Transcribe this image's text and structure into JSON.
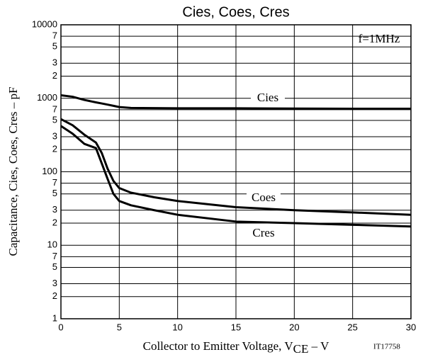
{
  "chart_data": {
    "type": "line",
    "title": "Cies, Coes, Cres",
    "y_label": "Capacitance, Cies, Coes, Cres – pF",
    "x_label_parts": [
      "Collector to Emitter Voltage, V",
      "CE",
      " – V"
    ],
    "annotations": [
      "f=1MHz",
      "IT17758"
    ],
    "x": [
      0,
      1,
      2,
      3,
      3.5,
      4,
      4.5,
      5,
      6,
      8,
      10,
      15,
      20,
      25,
      30
    ],
    "series": [
      {
        "name": "Cies",
        "color": "#000000",
        "values": [
          1100,
          1050,
          950,
          880,
          850,
          820,
          790,
          760,
          740,
          735,
          730,
          730,
          725,
          720,
          720
        ]
      },
      {
        "name": "Coes",
        "color": "#000000",
        "values": [
          520,
          430,
          320,
          250,
          180,
          110,
          75,
          60,
          52,
          45,
          40,
          33,
          30,
          28,
          26
        ]
      },
      {
        "name": "Cres",
        "color": "#000000",
        "values": [
          420,
          330,
          240,
          210,
          130,
          80,
          50,
          40,
          35,
          30,
          26,
          21,
          20,
          19,
          18
        ]
      }
    ],
    "xlim": [
      0,
      30
    ],
    "xticks": [
      0,
      5,
      10,
      15,
      20,
      25,
      30
    ],
    "ylim": [
      1,
      10000
    ],
    "log_y": true,
    "grid": true,
    "yticks": [
      1,
      {
        "value": 2,
        "label": "2"
      },
      {
        "value": 3,
        "label": "3"
      },
      {
        "value": 5,
        "label": "5"
      },
      {
        "value": 7,
        "label": "7"
      },
      10,
      {
        "value": 20,
        "label": "2"
      },
      {
        "value": 30,
        "label": "3"
      },
      {
        "value": 50,
        "label": "5"
      },
      {
        "value": 70,
        "label": "7"
      },
      100,
      {
        "value": 200,
        "label": "2"
      },
      {
        "value": 300,
        "label": "3"
      },
      {
        "value": 500,
        "label": "5"
      },
      {
        "value": 700,
        "label": "7"
      },
      1000,
      {
        "value": 2000,
        "label": "2"
      },
      {
        "value": 3000,
        "label": "3"
      },
      {
        "value": 5000,
        "label": "5"
      },
      {
        "value": 7000,
        "label": "7"
      },
      10000
    ]
  }
}
